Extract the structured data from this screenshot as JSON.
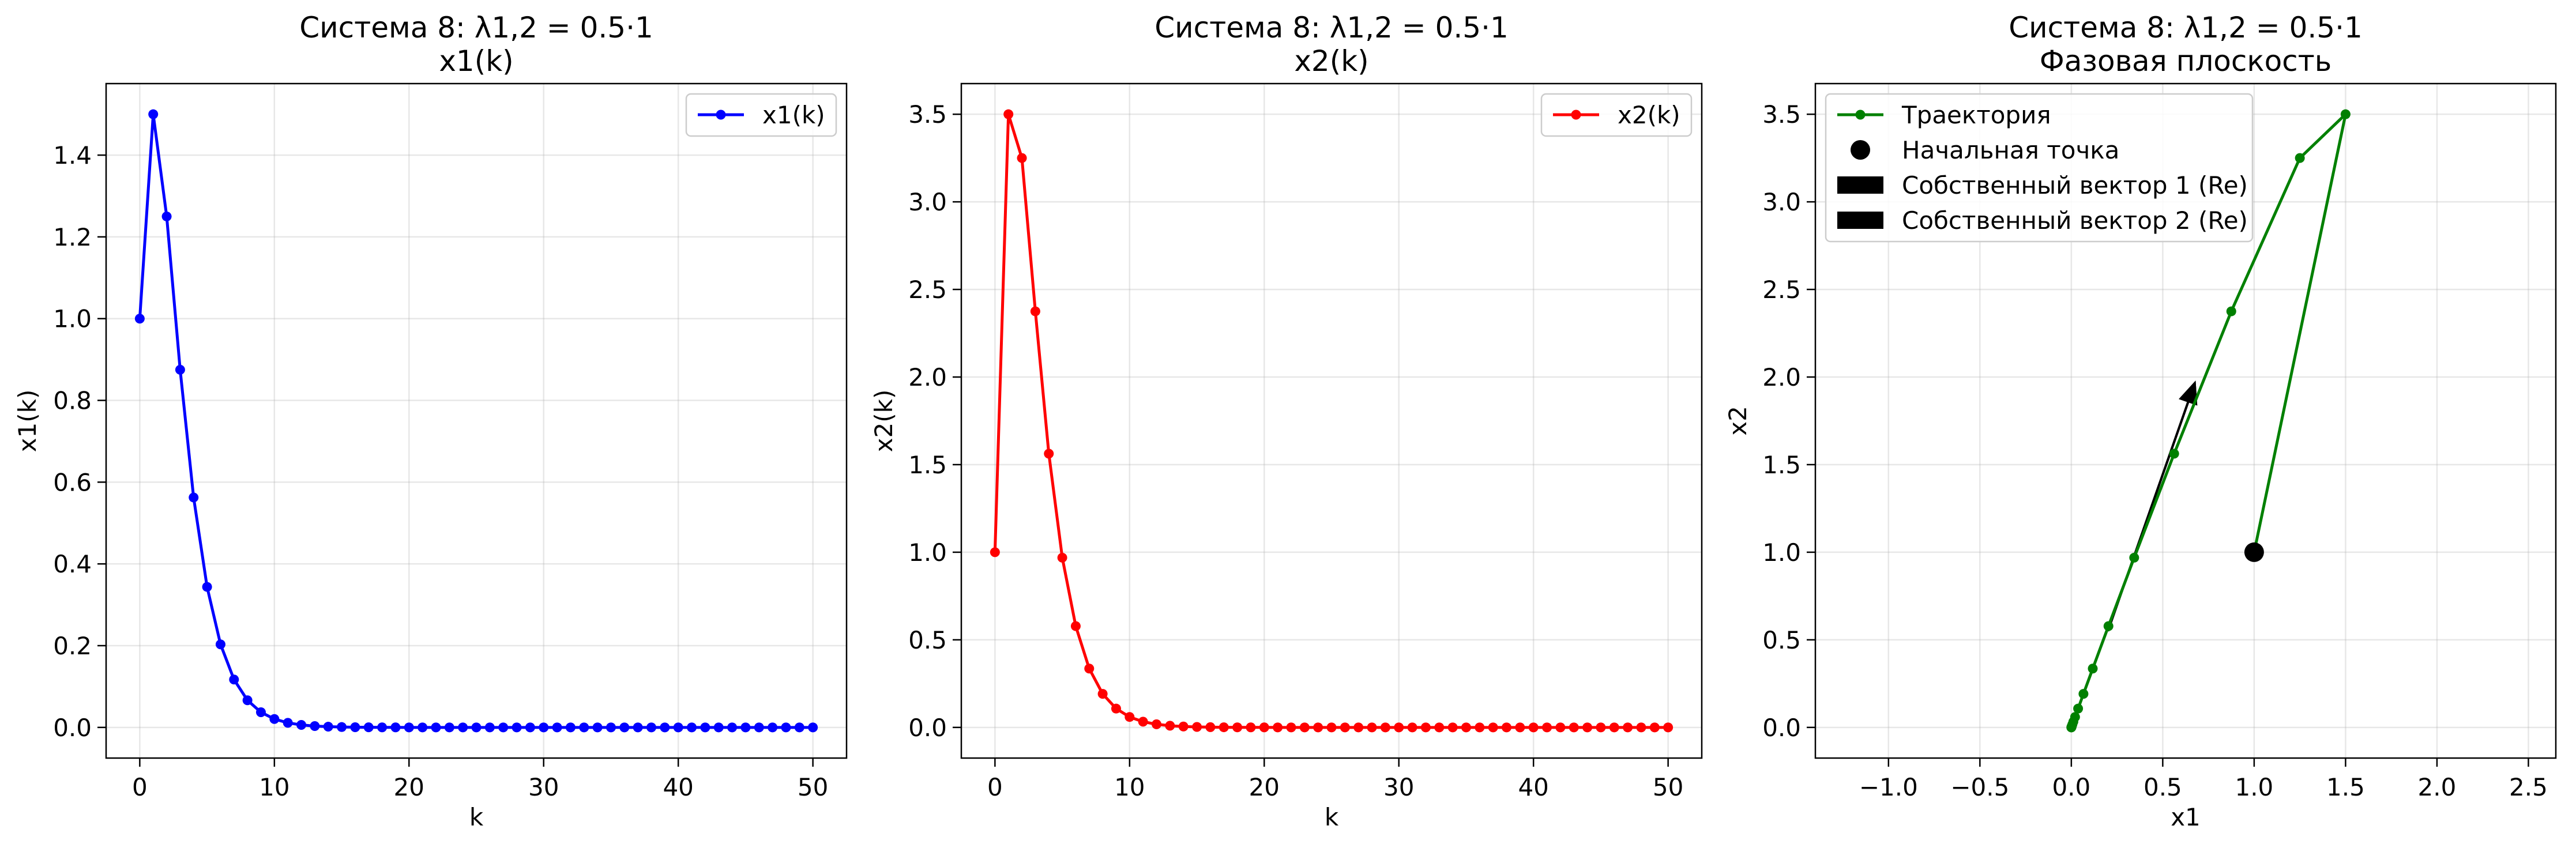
{
  "chart_data": [
    {
      "type": "line",
      "title": "Система 8: λ1,2 = 0.5·1",
      "subtitle": "x1(k)",
      "xlabel": "k",
      "ylabel": "x1(k)",
      "xlim": [
        -2.5,
        52.5
      ],
      "ylim": [
        -0.075,
        1.575
      ],
      "xticks": [
        0,
        10,
        20,
        30,
        40,
        50
      ],
      "xtick_labels": [
        "0",
        "10",
        "20",
        "30",
        "40",
        "50"
      ],
      "yticks": [
        0,
        0.2,
        0.4,
        0.6,
        0.8,
        1.0,
        1.2,
        1.4
      ],
      "ytick_labels": [
        "0.0",
        "0.2",
        "0.4",
        "0.6",
        "0.8",
        "1.0",
        "1.2",
        "1.4"
      ],
      "grid": true,
      "legend": "top-right",
      "series": [
        {
          "name": "x1(k)",
          "color": "#0000ff",
          "marker": "circle",
          "x": [
            0,
            1,
            2,
            3,
            4,
            5,
            6,
            7,
            8,
            9,
            10,
            11,
            12,
            13,
            14,
            15,
            16,
            17,
            18,
            19,
            20,
            21,
            22,
            23,
            24,
            25,
            26,
            27,
            28,
            29,
            30,
            31,
            32,
            33,
            34,
            35,
            36,
            37,
            38,
            39,
            40,
            41,
            42,
            43,
            44,
            45,
            46,
            47,
            48,
            49,
            50
          ],
          "y": [
            1.0,
            1.5,
            1.25,
            0.875,
            0.5625,
            0.34375,
            0.2031,
            0.1172,
            0.0664,
            0.0371,
            0.0205,
            0.0112,
            0.0061,
            0.0033,
            0.0018,
            0.0009,
            0.0005,
            0.0003,
            0.0001,
            0.0001,
            0,
            0,
            0,
            0,
            0,
            0,
            0,
            0,
            0,
            0,
            0,
            0,
            0,
            0,
            0,
            0,
            0,
            0,
            0,
            0,
            0,
            0,
            0,
            0,
            0,
            0,
            0,
            0,
            0,
            0,
            0
          ]
        }
      ]
    },
    {
      "type": "line",
      "title": "Система 8: λ1,2 = 0.5·1",
      "subtitle": "x2(k)",
      "xlabel": "k",
      "ylabel": "x2(k)",
      "xlim": [
        -2.5,
        52.5
      ],
      "ylim": [
        -0.175,
        3.675
      ],
      "xticks": [
        0,
        10,
        20,
        30,
        40,
        50
      ],
      "xtick_labels": [
        "0",
        "10",
        "20",
        "30",
        "40",
        "50"
      ],
      "yticks": [
        0,
        0.5,
        1.0,
        1.5,
        2.0,
        2.5,
        3.0,
        3.5
      ],
      "ytick_labels": [
        "0.0",
        "0.5",
        "1.0",
        "1.5",
        "2.0",
        "2.5",
        "3.0",
        "3.5"
      ],
      "grid": true,
      "legend": "top-right",
      "series": [
        {
          "name": "x2(k)",
          "color": "#ff0000",
          "marker": "circle",
          "x": [
            0,
            1,
            2,
            3,
            4,
            5,
            6,
            7,
            8,
            9,
            10,
            11,
            12,
            13,
            14,
            15,
            16,
            17,
            18,
            19,
            20,
            21,
            22,
            23,
            24,
            25,
            26,
            27,
            28,
            29,
            30,
            31,
            32,
            33,
            34,
            35,
            36,
            37,
            38,
            39,
            40,
            41,
            42,
            43,
            44,
            45,
            46,
            47,
            48,
            49,
            50
          ],
          "y": [
            1.0,
            3.5,
            3.25,
            2.375,
            1.5625,
            0.96875,
            0.5781,
            0.3359,
            0.1914,
            0.1074,
            0.0596,
            0.0327,
            0.0178,
            0.0096,
            0.0052,
            0.0028,
            0.0015,
            0.0008,
            0.0004,
            0.0002,
            0.0001,
            0,
            0,
            0,
            0,
            0,
            0,
            0,
            0,
            0,
            0,
            0,
            0,
            0,
            0,
            0,
            0,
            0,
            0,
            0,
            0,
            0,
            0,
            0,
            0,
            0,
            0,
            0,
            0,
            0,
            0
          ]
        }
      ]
    },
    {
      "type": "line",
      "title": "Система 8: λ1,2 = 0.5·1",
      "subtitle": "Фазовая плоскость",
      "xlabel": "x1",
      "ylabel": "x2",
      "xlim": [
        -1.4,
        2.65
      ],
      "ylim": [
        -0.175,
        3.675
      ],
      "xticks": [
        -1.0,
        -0.5,
        0.0,
        0.5,
        1.0,
        1.5,
        2.0,
        2.5
      ],
      "xtick_labels": [
        "−1.0",
        "−0.5",
        "0.0",
        "0.5",
        "1.0",
        "1.5",
        "2.0",
        "2.5"
      ],
      "yticks": [
        0,
        0.5,
        1.0,
        1.5,
        2.0,
        2.5,
        3.0,
        3.5
      ],
      "ytick_labels": [
        "0.0",
        "0.5",
        "1.0",
        "1.5",
        "2.0",
        "2.5",
        "3.0",
        "3.5"
      ],
      "grid": true,
      "legend": "top-left",
      "series": [
        {
          "name": "Траектория",
          "color": "#008000",
          "marker": "circle",
          "x": [
            1.0,
            1.5,
            1.25,
            0.875,
            0.5625,
            0.34375,
            0.2031,
            0.1172,
            0.0664,
            0.0371,
            0.0205,
            0.0112,
            0.0061,
            0.0033,
            0.0018,
            0.0009,
            0.0005,
            0.0003,
            0.0001,
            0.0001,
            0
          ],
          "y": [
            1.0,
            3.5,
            3.25,
            2.375,
            1.5625,
            0.96875,
            0.5781,
            0.3359,
            0.1914,
            0.1074,
            0.0596,
            0.0327,
            0.0178,
            0.0096,
            0.0052,
            0.0028,
            0.0015,
            0.0008,
            0.0004,
            0.0002,
            0.0001
          ]
        }
      ],
      "start_point": {
        "name": "Начальная точка",
        "x": 1.0,
        "y": 1.0,
        "color": "#000000"
      },
      "eigenvectors": [
        {
          "name": "Собственный вектор 1 (Re)",
          "from": [
            0.2,
            0.55
          ],
          "to": [
            0.68,
            1.98
          ],
          "color": "#000000"
        },
        {
          "name": "Собственный вектор 2 (Re)",
          "from": [
            0.2,
            0.55
          ],
          "to": [
            0.68,
            1.98
          ],
          "color": "#000000"
        }
      ]
    }
  ]
}
